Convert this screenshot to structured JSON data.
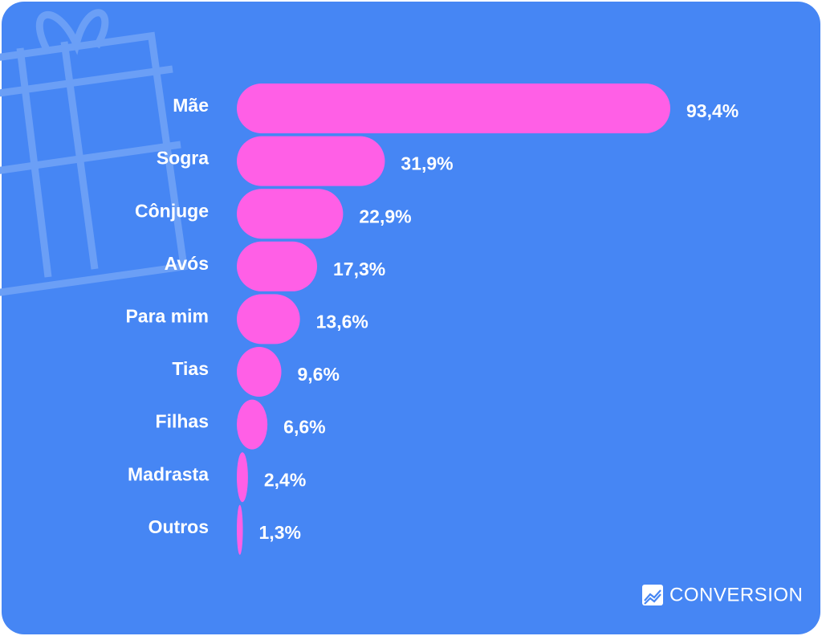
{
  "chart_data": {
    "type": "bar",
    "orientation": "horizontal",
    "categories": [
      "Mãe",
      "Sogra",
      "Cônjuge",
      "Avós",
      "Para mim",
      "Tias",
      "Filhas",
      "Madrasta",
      "Outros"
    ],
    "values": [
      93.4,
      31.9,
      22.9,
      17.3,
      13.6,
      9.6,
      6.6,
      2.4,
      1.3
    ],
    "value_labels": [
      "93,4%",
      "31,9%",
      "22,9%",
      "17,3%",
      "13,6%",
      "9,6%",
      "6,6%",
      "2,4%",
      "1,3%"
    ],
    "color": "#ff5fe6",
    "brand": "CONVERSION"
  }
}
